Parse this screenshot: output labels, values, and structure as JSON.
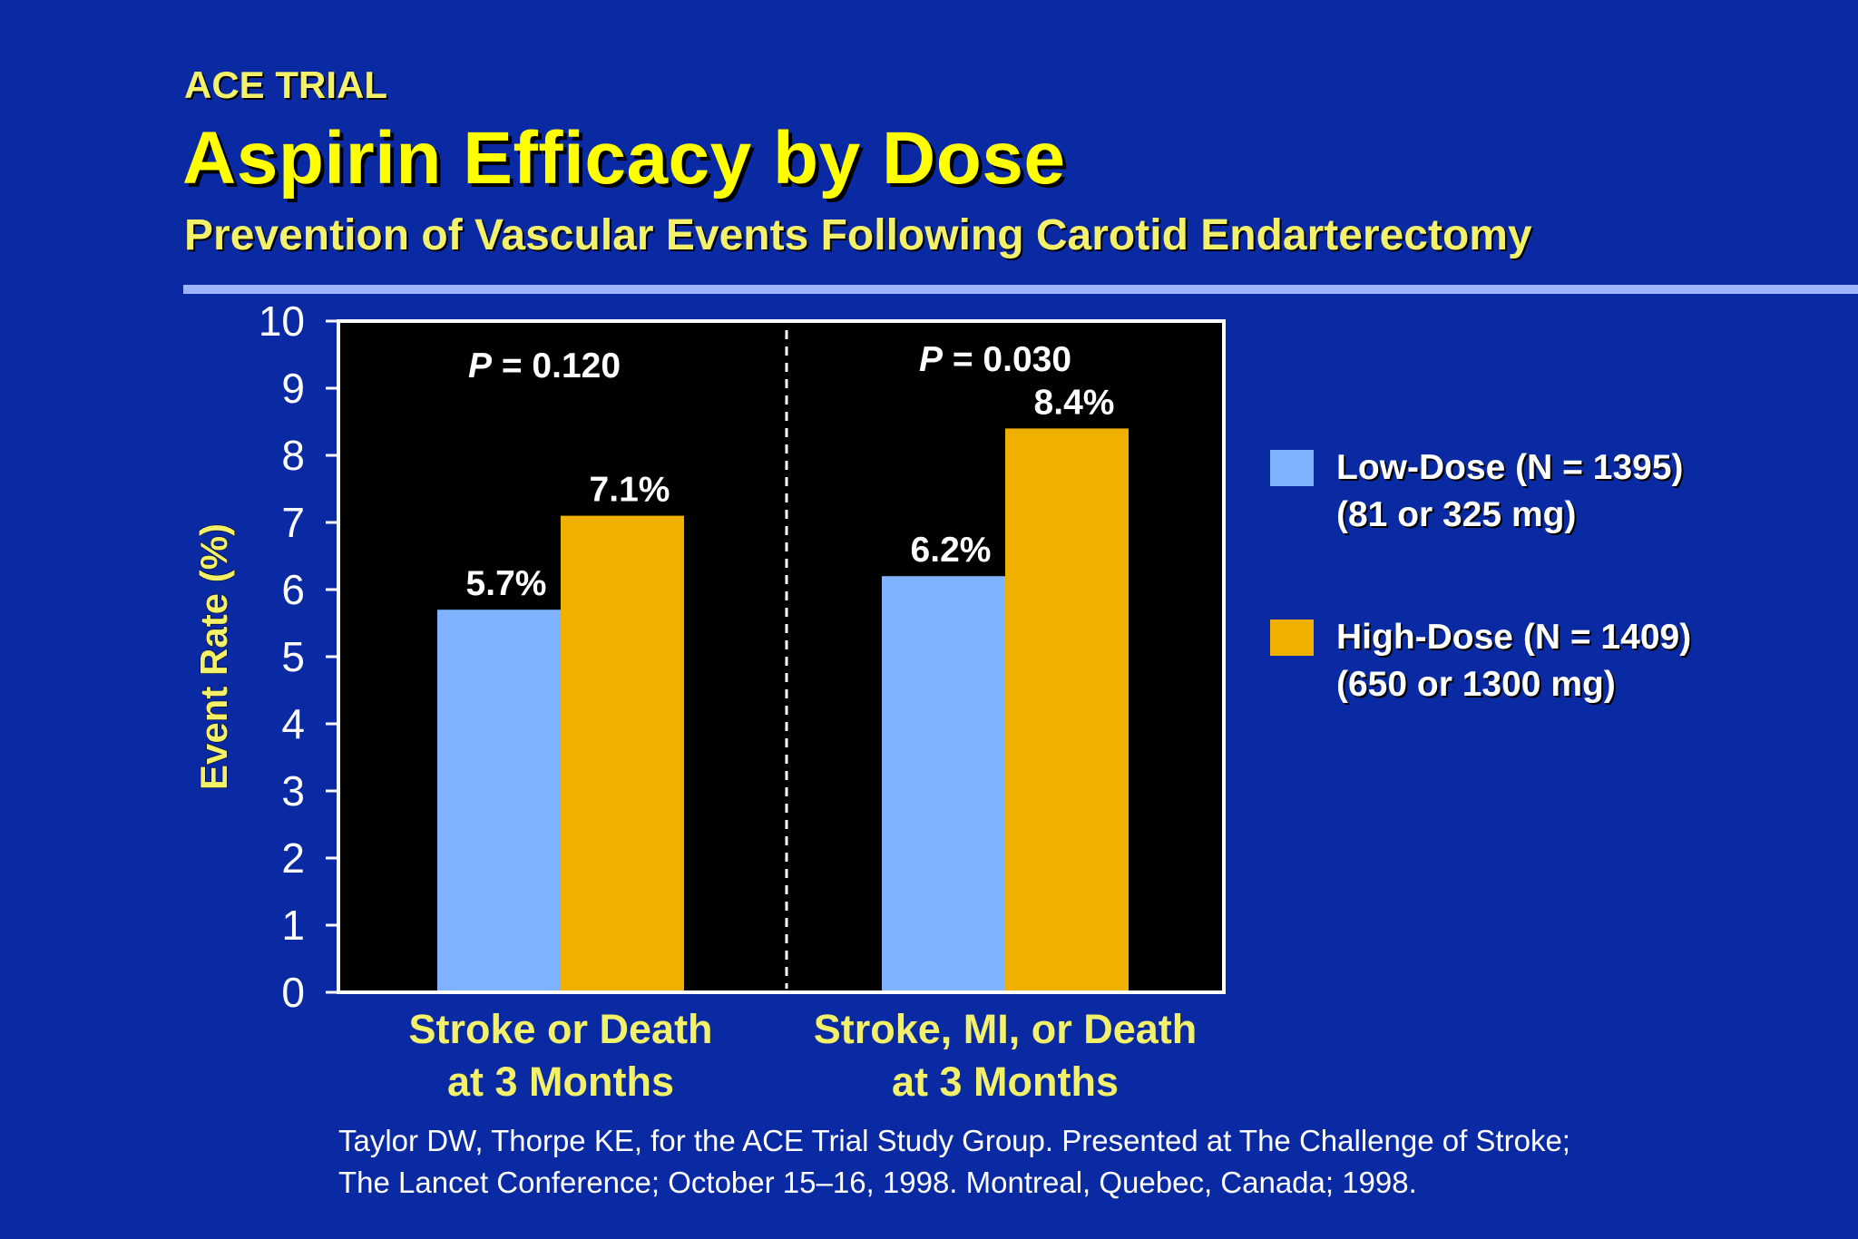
{
  "header": {
    "kicker": "ACE TRIAL",
    "title": "Aspirin Efficacy by Dose",
    "subtitle": "Prevention of Vascular Events Following Carotid Endarterectomy"
  },
  "chart_data": {
    "type": "bar",
    "categories": [
      [
        "Stroke or Death",
        "at 3 Months"
      ],
      [
        "Stroke, MI, or Death",
        "at 3 Months"
      ]
    ],
    "series": [
      {
        "name": "Low-Dose (N = 1395)",
        "detail": "(81 or 325 mg)",
        "color": "#80b3ff",
        "values": [
          5.7,
          6.2
        ],
        "labels": [
          "5.7%",
          "6.2%"
        ]
      },
      {
        "name": "High-Dose (N = 1409)",
        "detail": "(650 or 1300 mg)",
        "color": "#f0b000",
        "values": [
          7.1,
          8.4
        ],
        "labels": [
          "7.1%",
          "8.4%"
        ]
      }
    ],
    "ylabel": "Event Rate (%)",
    "ylim": [
      0,
      10
    ],
    "yticks": [
      0,
      1,
      2,
      3,
      4,
      5,
      6,
      7,
      8,
      9,
      10
    ],
    "annotations": [
      {
        "prefix": "P",
        "text": " = 0.120"
      },
      {
        "prefix": "P",
        "text": " = 0.030"
      }
    ],
    "plot_background": "#000000",
    "legend_position": "right",
    "grid": false
  },
  "footnote": {
    "line1": "Taylor DW, Thorpe KE, for the ACE Trial Study Group. Presented at The Challenge of Stroke;",
    "line2": "The Lancet Conference; October 15–16, 1998. Montreal, Quebec, Canada; 1998."
  }
}
